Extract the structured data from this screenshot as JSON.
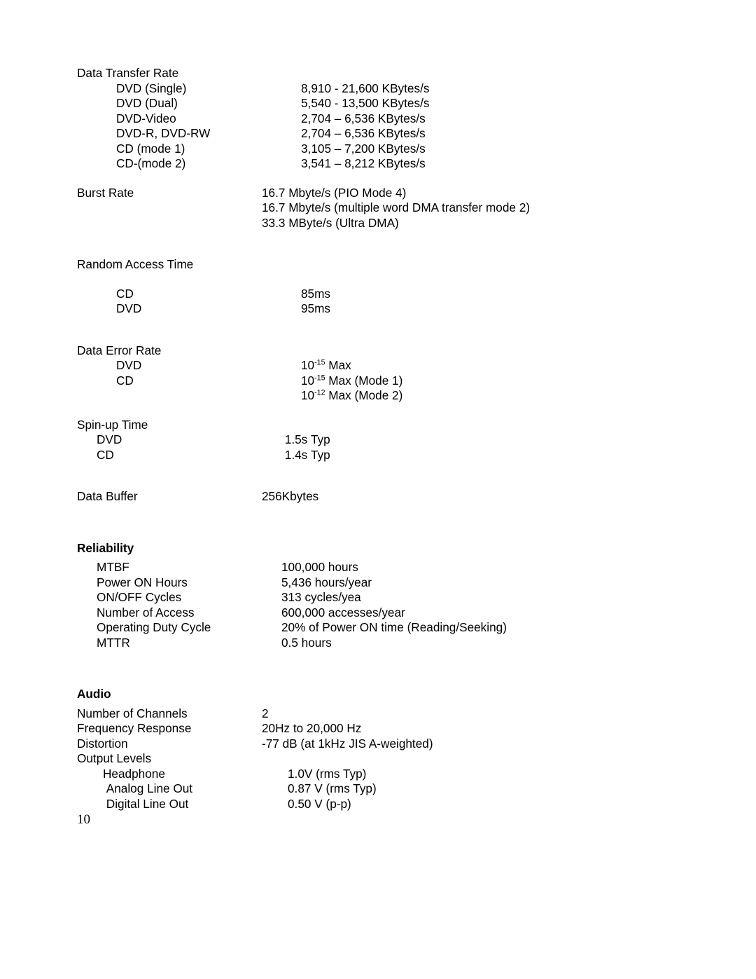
{
  "font": {
    "body_size_pt": 12,
    "body_color": "#000000",
    "heading_weight": "bold"
  },
  "page": {
    "number": "10",
    "background": "#ffffff"
  },
  "sections": {
    "data_transfer_rate": {
      "heading": "Data Transfer Rate",
      "rows": [
        {
          "label": "DVD (Single)",
          "value": "8,910 - 21,600 KBytes/s"
        },
        {
          "label": "DVD (Dual)",
          "value": "5,540 - 13,500 KBytes/s"
        },
        {
          "label": "DVD-Video",
          "value": "2,704 – 6,536 KBytes/s"
        },
        {
          "label": "DVD-R, DVD-RW",
          "value": "2,704 – 6,536 KBytes/s"
        },
        {
          "label": "CD (mode 1)",
          "value": "3,105 – 7,200 KBytes/s"
        },
        {
          "label": "CD-(mode 2)",
          "value": "3,541 – 8,212 KBytes/s"
        }
      ]
    },
    "burst_rate": {
      "label": "Burst Rate",
      "values": [
        "16.7 Mbyte/s (PIO Mode 4)",
        "16.7 Mbyte/s (multiple word DMA transfer mode 2)",
        "33.3 MByte/s (Ultra DMA)"
      ]
    },
    "random_access_time": {
      "heading": "Random Access Time",
      "rows": [
        {
          "label": "CD",
          "value": "85ms"
        },
        {
          "label": "DVD",
          "value": "95ms"
        }
      ]
    },
    "data_error_rate": {
      "heading": "Data Error Rate",
      "rows": [
        {
          "label": "DVD",
          "value_pre": "10",
          "exp": "-15",
          "value_post": " Max"
        },
        {
          "label": "CD",
          "value_pre": "10",
          "exp": "-15",
          "value_post": " Max (Mode 1)"
        },
        {
          "label": "",
          "value_pre": "10",
          "exp": "-12",
          "value_post": " Max (Mode 2)"
        }
      ]
    },
    "spin_up_time": {
      "heading": "Spin-up Time",
      "rows": [
        {
          "label": "DVD",
          "value": " 1.5s Typ"
        },
        {
          "label": "CD",
          "value": " 1.4s Typ"
        }
      ]
    },
    "data_buffer": {
      "label": "Data Buffer",
      "value": "256Kbytes"
    },
    "reliability": {
      "heading": "Reliability",
      "rows": [
        {
          "label": "MTBF",
          "value": "100,000 hours"
        },
        {
          "label": "Power ON Hours",
          "value": "5,436 hours/year"
        },
        {
          "label": "ON/OFF Cycles",
          "value": "313 cycles/yea"
        },
        {
          "label": "Number of Access",
          "value": "600,000 accesses/year"
        },
        {
          "label": "Operating Duty Cycle",
          "value": "20% of Power ON time (Reading/Seeking)"
        },
        {
          "label": "MTTR",
          "value": "0.5 hours"
        }
      ]
    },
    "audio": {
      "heading": "Audio",
      "top_rows": [
        {
          "label": "Number of Channels",
          "value": "2"
        },
        {
          "label": "Frequency Response",
          "value": "20Hz to 20,000 Hz"
        },
        {
          "label": "Distortion",
          "value": "-77 dB (at 1kHz JIS A-weighted)"
        }
      ],
      "output_levels_label": "Output Levels",
      "output_rows": [
        {
          "label": "Headphone",
          "value": "1.0V (rms Typ)"
        },
        {
          "label": " Analog Line Out",
          "value": "0.87 V (rms Typ)"
        },
        {
          "label": " Digital Line Out",
          "value": "0.50 V (p-p)"
        }
      ]
    }
  }
}
